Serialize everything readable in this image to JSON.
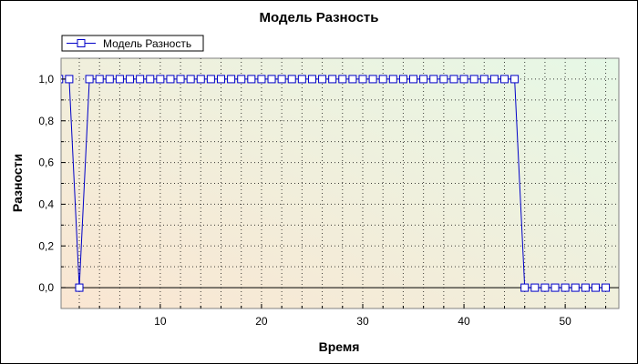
{
  "chart_data": {
    "type": "line",
    "title": "Модель Разность",
    "xlabel": "Время",
    "ylabel": "Разности",
    "legend": {
      "position": "top-left",
      "entries": [
        "Модель Разность"
      ]
    },
    "grid": true,
    "xlim": [
      0.2,
      55.3
    ],
    "ylim": [
      -0.1,
      1.1
    ],
    "x_ticks": [
      10,
      20,
      30,
      40,
      50
    ],
    "y_ticks": [
      {
        "value": 0.0,
        "label": "0,0"
      },
      {
        "value": 0.2,
        "label": "0,2"
      },
      {
        "value": 0.4,
        "label": "0,4"
      },
      {
        "value": 0.6,
        "label": "0,6"
      },
      {
        "value": 0.8,
        "label": "0,8"
      },
      {
        "value": 1.0,
        "label": "1,0"
      }
    ],
    "colors": {
      "series": "#0000c8",
      "bg_left": "#fae6d2",
      "bg_right": "#e6f8e6"
    },
    "series": [
      {
        "name": "Модель Разность",
        "x": [
          0,
          1,
          2,
          3,
          4,
          5,
          6,
          7,
          8,
          9,
          10,
          11,
          12,
          13,
          14,
          15,
          16,
          17,
          18,
          19,
          20,
          21,
          22,
          23,
          24,
          25,
          26,
          27,
          28,
          29,
          30,
          31,
          32,
          33,
          34,
          35,
          36,
          37,
          38,
          39,
          40,
          41,
          42,
          43,
          44,
          45,
          46,
          47,
          48,
          49,
          50,
          51,
          52,
          53,
          54
        ],
        "y": [
          1,
          1,
          0,
          1,
          1,
          1,
          1,
          1,
          1,
          1,
          1,
          1,
          1,
          1,
          1,
          1,
          1,
          1,
          1,
          1,
          1,
          1,
          1,
          1,
          1,
          1,
          1,
          1,
          1,
          1,
          1,
          1,
          1,
          1,
          1,
          1,
          1,
          1,
          1,
          1,
          1,
          1,
          1,
          1,
          1,
          1,
          0,
          0,
          0,
          0,
          0,
          0,
          0,
          0,
          0
        ]
      }
    ]
  }
}
